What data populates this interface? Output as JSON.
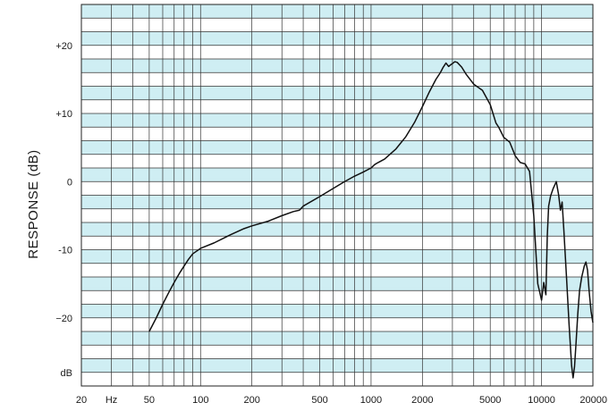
{
  "chart_data": {
    "type": "line",
    "title": "",
    "xlabel": "",
    "ylabel": "RESPONSE (dB)",
    "x_scale": "log",
    "xlim": [
      20,
      20000
    ],
    "ylim": [
      -30,
      26
    ],
    "grid": true,
    "band_colors": [
      "#cfeef3",
      "#ffffff"
    ],
    "line_color": "#111111",
    "x_ticks": [
      {
        "value": 20,
        "label": "20"
      },
      {
        "value": 30,
        "label": "Hz"
      },
      {
        "value": 50,
        "label": "50"
      },
      {
        "value": 100,
        "label": "100"
      },
      {
        "value": 200,
        "label": "200"
      },
      {
        "value": 500,
        "label": "500"
      },
      {
        "value": 1000,
        "label": "1000"
      },
      {
        "value": 2000,
        "label": "2000"
      },
      {
        "value": 5000,
        "label": "5000"
      },
      {
        "value": 10000,
        "label": "10000"
      },
      {
        "value": 20000,
        "label": "20000"
      }
    ],
    "y_ticks": [
      {
        "value": 20,
        "label": "+20"
      },
      {
        "value": 10,
        "label": "+10"
      },
      {
        "value": 0,
        "label": "0"
      },
      {
        "value": -10,
        "label": "-10"
      },
      {
        "value": -20,
        "label": "−20"
      },
      {
        "value": -28,
        "label": "dB"
      }
    ],
    "series": [
      {
        "x": [
          50,
          55,
          60,
          65,
          70,
          75,
          80,
          85,
          90,
          100,
          120,
          150,
          180,
          200,
          250,
          300,
          350,
          380,
          400,
          500,
          600,
          700,
          800,
          900,
          1000,
          1050,
          1100,
          1200,
          1400,
          1600,
          1800,
          2000,
          2200,
          2400,
          2550,
          2650,
          2750,
          2850,
          2950,
          3100,
          3200,
          3400,
          3600,
          4000,
          4500,
          5000,
          5400,
          5600,
          6000,
          6500,
          7000,
          7500,
          8000,
          8500,
          9000,
          9500,
          10000,
          10300,
          10600,
          10800,
          11000,
          11300,
          11700,
          12200,
          12600,
          12900,
          13200,
          13500,
          14000,
          14500,
          15000,
          15300,
          15600,
          15900,
          16300,
          16700,
          17200,
          17800,
          18200,
          18600,
          19000,
          19500,
          20000
        ],
        "y": [
          -22.0,
          -20.0,
          -18.0,
          -16.3,
          -14.8,
          -13.5,
          -12.4,
          -11.4,
          -10.6,
          -9.8,
          -9.0,
          -7.8,
          -6.9,
          -6.5,
          -5.8,
          -5.0,
          -4.4,
          -4.2,
          -3.6,
          -2.2,
          -1.0,
          0.0,
          0.8,
          1.4,
          2.0,
          2.5,
          2.8,
          3.3,
          4.8,
          6.6,
          8.7,
          11.0,
          13.2,
          15.0,
          16.0,
          16.8,
          17.4,
          16.9,
          17.2,
          17.6,
          17.5,
          16.8,
          15.8,
          14.3,
          13.4,
          11.3,
          8.6,
          8.0,
          6.5,
          5.8,
          3.8,
          2.8,
          2.6,
          1.5,
          -5.0,
          -15.0,
          -17.4,
          -14.8,
          -16.6,
          -8.0,
          -3.6,
          -2.1,
          -1.0,
          0.0,
          -2.0,
          -4.2,
          -3.0,
          -7.0,
          -14.0,
          -21.0,
          -27.0,
          -28.8,
          -27.2,
          -24.0,
          -19.5,
          -16.0,
          -14.0,
          -12.4,
          -11.8,
          -13.0,
          -16.0,
          -19.0,
          -20.7
        ]
      }
    ]
  }
}
